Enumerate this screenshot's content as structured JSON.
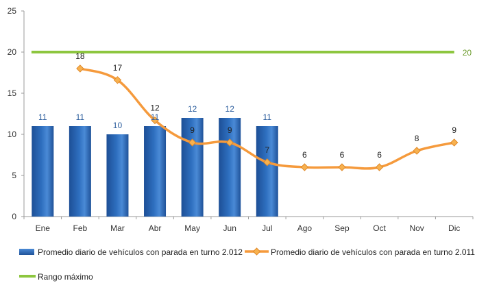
{
  "chart_data": {
    "type": "bar",
    "categories": [
      "Ene",
      "Feb",
      "Mar",
      "Abr",
      "May",
      "Jun",
      "Jul",
      "Ago",
      "Sep",
      "Oct",
      "Nov",
      "Dic"
    ],
    "ylim": [
      0,
      25
    ],
    "yticks": [
      0,
      5,
      10,
      15,
      20,
      25
    ],
    "grid": false,
    "legend_position": "bottom",
    "series": [
      {
        "name": "Promedio diario de vehículos con parada en turno 2.012",
        "type": "bar",
        "color": "#2e6fbf",
        "label_color": "#2e5f9e",
        "values": [
          11,
          11,
          10,
          11,
          12,
          12,
          11,
          null,
          null,
          null,
          null,
          null
        ]
      },
      {
        "name": "Promedio diario de vehículos con parada en turno 2.011",
        "type": "line",
        "marker": "diamond",
        "color": "#f59a3c",
        "marker_color": "#f7b14f",
        "label_color": "#222222",
        "values": [
          null,
          18,
          16.6,
          11.7,
          9,
          9,
          6.6,
          6,
          6,
          6,
          8,
          9
        ],
        "labels": [
          null,
          "18",
          "17",
          "12",
          "9",
          "9",
          "7",
          "6",
          "6",
          "6",
          "8",
          "9"
        ]
      },
      {
        "name": "Rango máximo",
        "type": "line",
        "color": "#8dc63f",
        "label_color": "#6a9a2a",
        "values": [
          20,
          20,
          20,
          20,
          20,
          20,
          20,
          20,
          20,
          20,
          20,
          20
        ],
        "end_label": "20"
      }
    ]
  }
}
